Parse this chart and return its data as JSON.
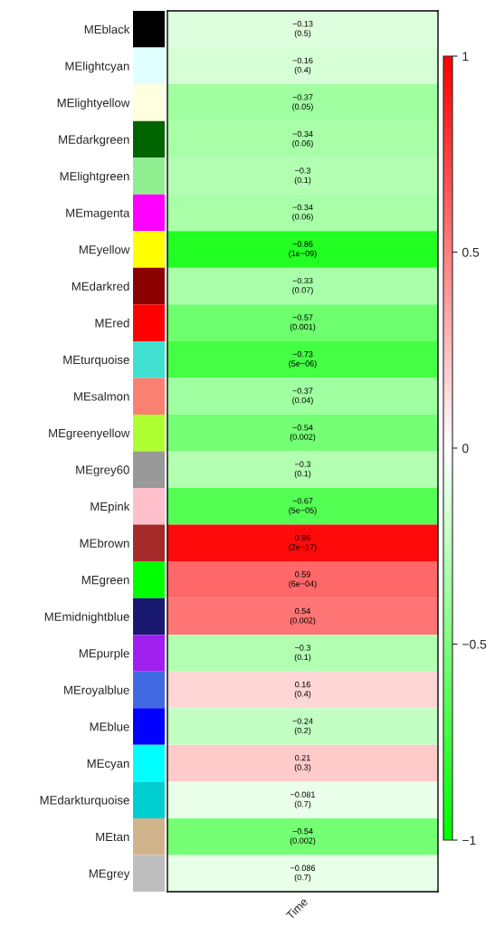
{
  "chart_data": {
    "type": "heatmap",
    "categories": [
      "Time"
    ],
    "y_categories": [
      "MEblack",
      "MElightcyan",
      "MElightyellow",
      "MEdarkgreen",
      "MElightgreen",
      "MEmagenta",
      "MEyellow",
      "MEdarkred",
      "MEred",
      "MEturquoise",
      "MEsalmon",
      "MEgreenyellow",
      "MEgrey60",
      "MEpink",
      "MEbrown",
      "MEgreen",
      "MEmidnightblue",
      "MEpurple",
      "MEroyalblue",
      "MEblue",
      "MEcyan",
      "MEdarkturquoise",
      "MEtan",
      "MEgrey"
    ],
    "cells": [
      [
        -0.13
      ],
      [
        -0.16
      ],
      [
        -0.37
      ],
      [
        -0.34
      ],
      [
        -0.3
      ],
      [
        -0.34
      ],
      [
        -0.86
      ],
      [
        -0.33
      ],
      [
        -0.57
      ],
      [
        -0.73
      ],
      [
        -0.37
      ],
      [
        -0.54
      ],
      [
        -0.3
      ],
      [
        -0.67
      ],
      [
        0.96
      ],
      [
        0.59
      ],
      [
        0.54
      ],
      [
        -0.3
      ],
      [
        0.16
      ],
      [
        -0.24
      ],
      [
        0.21
      ],
      [
        -0.081
      ],
      [
        -0.54
      ],
      [
        -0.086
      ]
    ],
    "cell_labels": [
      [
        "−0.13\n(0.5)"
      ],
      [
        "−0.16\n(0.4)"
      ],
      [
        "−0.37\n(0.05)"
      ],
      [
        "−0.34\n(0.06)"
      ],
      [
        "−0.3\n(0.1)"
      ],
      [
        "−0.34\n(0.06)"
      ],
      [
        "−0.86\n(1e−09)"
      ],
      [
        "−0.33\n(0.07)"
      ],
      [
        "−0.57\n(0.001)"
      ],
      [
        "−0.73\n(5e−06)"
      ],
      [
        "−0.37\n(0.04)"
      ],
      [
        "−0.54\n(0.002)"
      ],
      [
        "−0.3\n(0.1)"
      ],
      [
        "−0.67\n(5e−05)"
      ],
      [
        "0.96\n(2e−17)"
      ],
      [
        "0.59\n(6e−04)"
      ],
      [
        "0.54\n(0.002)"
      ],
      [
        "−0.3\n(0.1)"
      ],
      [
        "0.16\n(0.4)"
      ],
      [
        "−0.24\n(0.2)"
      ],
      [
        "0.21\n(0.3)"
      ],
      [
        "−0.081\n(0.7)"
      ],
      [
        "−0.54\n(0.002)"
      ],
      [
        "−0.086\n(0.7)"
      ]
    ],
    "clim": [
      -1,
      1
    ],
    "cticks": [
      1,
      0.5,
      0,
      {
        "value": -0.5,
        "label": "−0.5"
      },
      {
        "value": -1,
        "label": "−1"
      }
    ]
  }
}
